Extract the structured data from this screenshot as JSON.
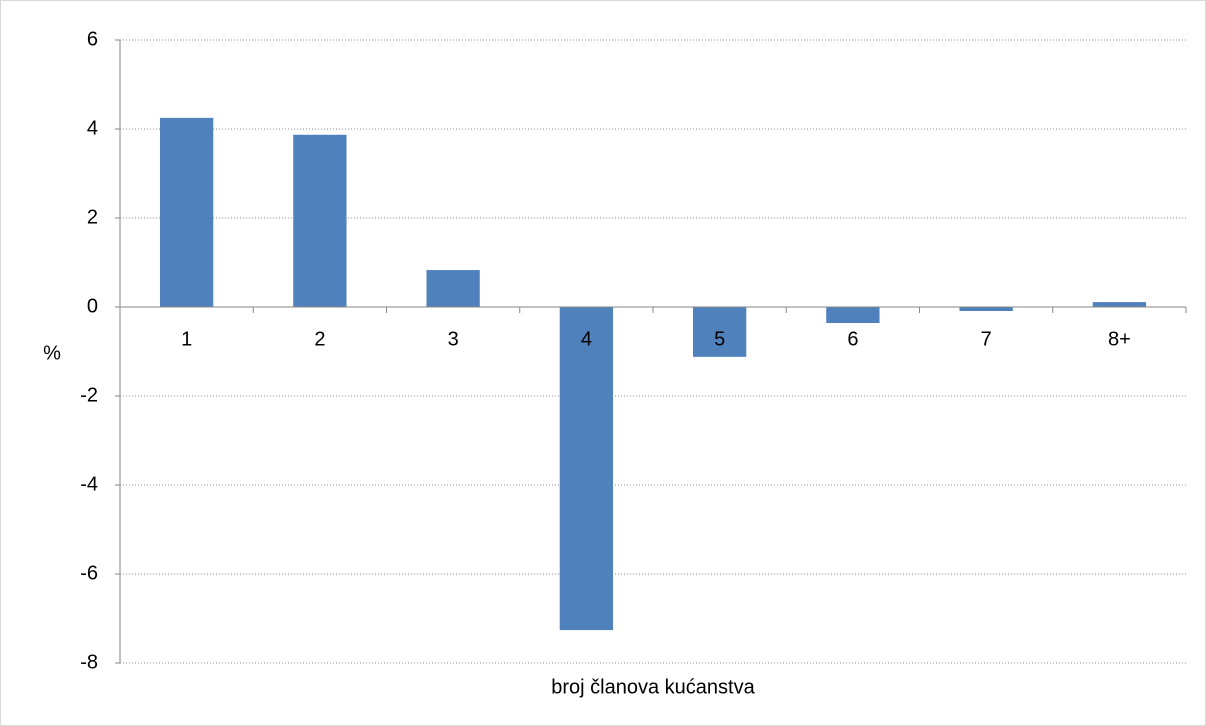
{
  "chart_data": {
    "type": "bar",
    "categories": [
      "1",
      "2",
      "3",
      "4",
      "5",
      "6",
      "7",
      "8+"
    ],
    "values": [
      4.25,
      3.87,
      0.83,
      -7.26,
      -1.12,
      -0.36,
      -0.09,
      0.11
    ],
    "color": "#4f81bd",
    "ylabel": "%",
    "xlabel": "broj članova kućanstva",
    "ylim": [
      -8,
      6
    ],
    "yticks": [
      -8,
      -6,
      -4,
      -2,
      0,
      2,
      4,
      6
    ],
    "grid": true
  }
}
